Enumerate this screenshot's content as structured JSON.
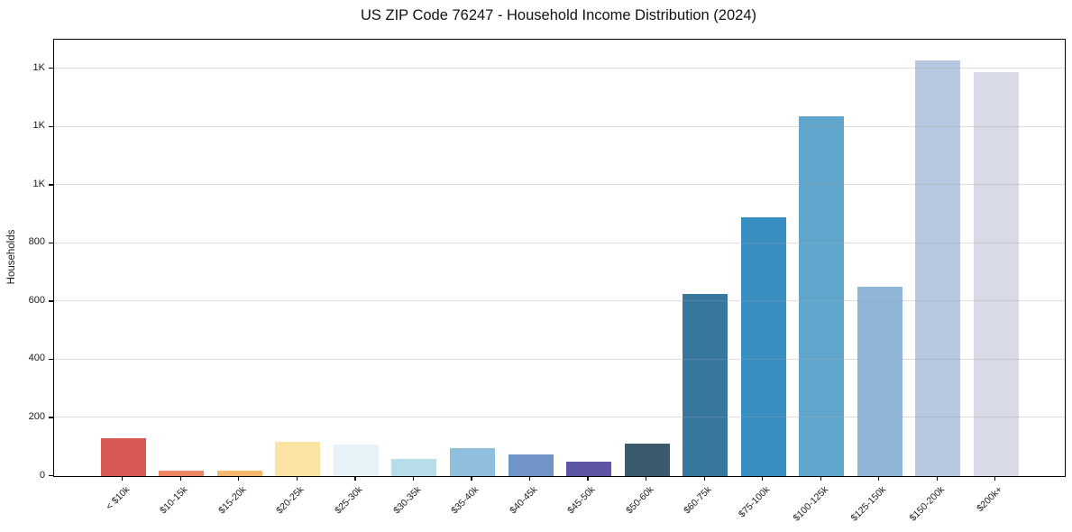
{
  "chart_data": {
    "type": "bar",
    "title": "US ZIP Code 76247 - Household Income Distribution (2024)",
    "xlabel": "",
    "ylabel": "Households",
    "categories": [
      "< $10k",
      "$10-15k",
      "$15-20k",
      "$20-25k",
      "$25-30k",
      "$30-35k",
      "$35-40k",
      "$40-45k",
      "$45-50k",
      "$50-60k",
      "$60-75k",
      "$75-100k",
      "$100-125k",
      "$125-150k",
      "$150-200k",
      "$200k+"
    ],
    "values": [
      130,
      20,
      19,
      117,
      110,
      58,
      97,
      73,
      50,
      113,
      627,
      890,
      1237,
      650,
      1428,
      1390
    ],
    "bar_colors": [
      "#d75b54",
      "#ec8466",
      "#f5b871",
      "#fbe3a3",
      "#e7f2f8",
      "#b7dcea",
      "#90bedd",
      "#7094c8",
      "#5d56a7",
      "#3a5a6e",
      "#38789f",
      "#388dc1",
      "#5ea6cb",
      "#8fb5d9",
      "#b9c8e1",
      "#d8dae8"
    ],
    "ylim": [
      0,
      1500
    ],
    "ytick_values": [
      0,
      200,
      400,
      600,
      800,
      1000,
      1200,
      1400
    ],
    "ytick_labels": [
      "0",
      "200",
      "400",
      "600",
      "800",
      "1K",
      "1K",
      "1K"
    ],
    "grid": "horizontal-light",
    "gridlines_above_bars": true,
    "legend": "none",
    "x_tick_rotation_deg": 45
  }
}
